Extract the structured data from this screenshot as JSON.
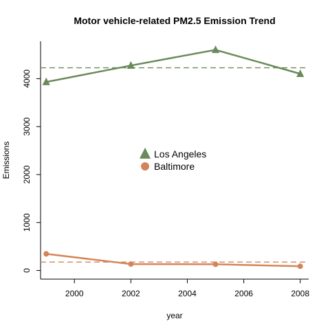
{
  "chart_data": {
    "type": "line",
    "title": "Motor vehicle-related PM2.5 Emission Trend",
    "xlabel": "year",
    "ylabel": "Emissions",
    "xlim": [
      1998.8,
      2008.3
    ],
    "ylim": [
      -180,
      4780
    ],
    "xticks": [
      2000,
      2002,
      2004,
      2006,
      2008
    ],
    "yticks": [
      0,
      1000,
      2000,
      3000,
      4000
    ],
    "grid": false,
    "legend_position": "center",
    "series": [
      {
        "name": "Los Angeles",
        "color": "#6a8a5a",
        "marker": "triangle",
        "x": [
          1999,
          2002,
          2005,
          2008
        ],
        "y": [
          3931,
          4274,
          4601,
          4101
        ],
        "mean": 4227
      },
      {
        "name": "Baltimore",
        "color": "#d4845a",
        "marker": "circle",
        "x": [
          1999,
          2002,
          2005,
          2008
        ],
        "y": [
          347,
          134,
          130,
          88
        ],
        "mean": 175
      }
    ]
  }
}
